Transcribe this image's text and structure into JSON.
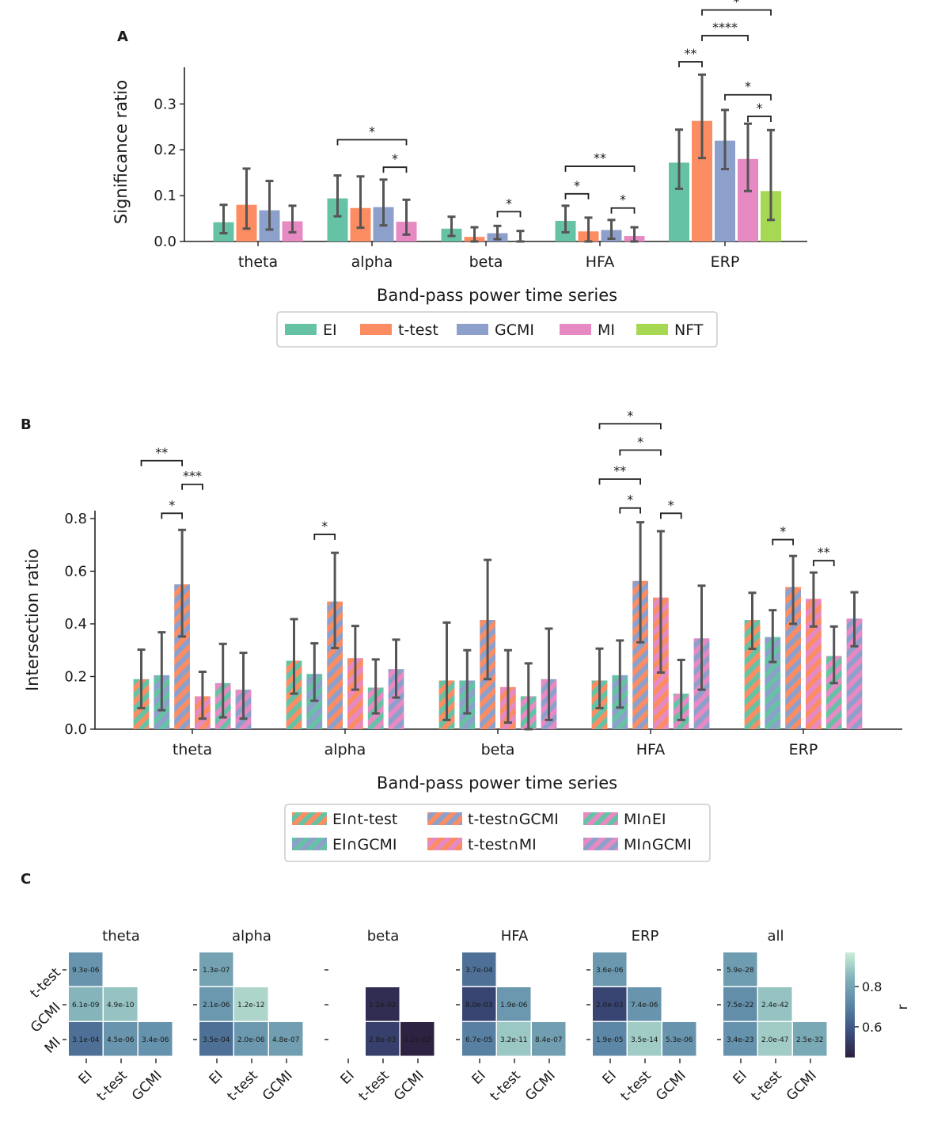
{
  "panel_labels": {
    "A": "A",
    "B": "B",
    "C": "C"
  },
  "colors": {
    "EI": "#66c2a5",
    "t-test": "#fc8d62",
    "GCMI": "#8da0cb",
    "MI": "#e78ac3",
    "NFT": "#a6d854",
    "error": "#555555",
    "cmap": [
      "#2d1e3e",
      "#3b4f80",
      "#5a84a6",
      "#7fb0b8",
      "#c9ecd6"
    ]
  },
  "chart_data": [
    {
      "type": "bar",
      "id": "A",
      "title": "",
      "xlabel": "Band-pass power time series",
      "ylabel": "Significance ratio",
      "ylim": [
        0,
        0.38
      ],
      "yticks": [
        0.0,
        0.1,
        0.2,
        0.3
      ],
      "ytick_labels": [
        "0.0",
        "0.1",
        "0.2",
        "0.3"
      ],
      "categories": [
        "theta",
        "alpha",
        "beta",
        "HFA",
        "ERP"
      ],
      "series": [
        {
          "name": "EI",
          "values": [
            0.042,
            0.094,
            0.028,
            0.045,
            0.172
          ],
          "err_low": [
            0.018,
            0.055,
            0.012,
            0.02,
            0.115
          ],
          "err_high": [
            0.08,
            0.144,
            0.054,
            0.078,
            0.244
          ]
        },
        {
          "name": "t-test",
          "values": [
            0.08,
            0.073,
            0.01,
            0.022,
            0.263
          ],
          "err_low": [
            0.028,
            0.03,
            0.0,
            0.0,
            0.182
          ],
          "err_high": [
            0.159,
            0.142,
            0.031,
            0.052,
            0.364
          ]
        },
        {
          "name": "GCMI",
          "values": [
            0.068,
            0.075,
            0.018,
            0.025,
            0.22
          ],
          "err_low": [
            0.026,
            0.035,
            0.005,
            0.006,
            0.158
          ],
          "err_high": [
            0.132,
            0.135,
            0.034,
            0.047,
            0.287
          ]
        },
        {
          "name": "MI",
          "values": [
            0.044,
            0.043,
            0.0,
            0.012,
            0.18
          ],
          "err_low": [
            0.02,
            0.015,
            0.0,
            0.0,
            0.11
          ],
          "err_high": [
            0.078,
            0.091,
            0.023,
            0.031,
            0.257
          ]
        },
        {
          "name": "NFT",
          "values": [
            null,
            null,
            null,
            null,
            0.11
          ],
          "err_low": [
            null,
            null,
            null,
            null,
            0.047
          ],
          "err_high": [
            null,
            null,
            null,
            null,
            0.243
          ]
        }
      ],
      "significance": [
        {
          "group": 1,
          "from": 0,
          "to": 3,
          "y": 0.222,
          "label": "*"
        },
        {
          "group": 1,
          "from": 2,
          "to": 3,
          "y": 0.162,
          "label": "*"
        },
        {
          "group": 2,
          "from": 2,
          "to": 3,
          "y": 0.065,
          "label": "*"
        },
        {
          "group": 3,
          "from": 0,
          "to": 3,
          "y": 0.164,
          "label": "**"
        },
        {
          "group": 3,
          "from": 0,
          "to": 1,
          "y": 0.104,
          "label": "*"
        },
        {
          "group": 3,
          "from": 2,
          "to": 3,
          "y": 0.073,
          "label": "*"
        },
        {
          "group": 4,
          "from": 0,
          "to": 1,
          "y": 0.392,
          "label": "**"
        },
        {
          "group": 4,
          "from": 1,
          "to": 3,
          "y": 0.449,
          "label": "****"
        },
        {
          "group": 4,
          "from": 1,
          "to": 4,
          "y": 0.505,
          "label": "*"
        },
        {
          "group": 4,
          "from": 2,
          "to": 4,
          "y": 0.32,
          "label": "*"
        },
        {
          "group": 4,
          "from": 3,
          "to": 4,
          "y": 0.273,
          "label": "*"
        }
      ],
      "legend": {
        "position": "bottom",
        "entries": [
          "EI",
          "t-test",
          "GCMI",
          "MI",
          "NFT"
        ]
      }
    },
    {
      "type": "bar",
      "id": "B",
      "title": "",
      "xlabel": "Band-pass power time series",
      "ylabel": "Intersection ratio",
      "ylim": [
        0,
        0.83
      ],
      "yticks": [
        0.0,
        0.2,
        0.4,
        0.6,
        0.8
      ],
      "ytick_labels": [
        "0.0",
        "0.2",
        "0.4",
        "0.6",
        "0.8"
      ],
      "categories": [
        "theta",
        "alpha",
        "beta",
        "HFA",
        "ERP"
      ],
      "series": [
        {
          "name": "EI∩t-test",
          "stripes": [
            "t-test",
            "EI"
          ],
          "values": [
            0.19,
            0.26,
            0.185,
            0.185,
            0.415
          ],
          "err_low": [
            0.08,
            0.135,
            0.035,
            0.08,
            0.305
          ],
          "err_high": [
            0.302,
            0.418,
            0.405,
            0.306,
            0.518
          ]
        },
        {
          "name": "EI∩GCMI",
          "stripes": [
            "EI",
            "GCMI"
          ],
          "values": [
            0.205,
            0.21,
            0.185,
            0.205,
            0.35
          ],
          "err_low": [
            0.072,
            0.108,
            0.06,
            0.082,
            0.255
          ],
          "err_high": [
            0.368,
            0.326,
            0.3,
            0.337,
            0.452
          ]
        },
        {
          "name": "t-test∩GCMI",
          "stripes": [
            "t-test",
            "GCMI"
          ],
          "values": [
            0.55,
            0.485,
            0.415,
            0.563,
            0.54
          ],
          "err_low": [
            0.352,
            0.308,
            0.19,
            0.33,
            0.4
          ],
          "err_high": [
            0.757,
            0.67,
            0.643,
            0.786,
            0.658
          ]
        },
        {
          "name": "t-test∩MI",
          "stripes": [
            "t-test",
            "MI"
          ],
          "values": [
            0.125,
            0.27,
            0.16,
            0.5,
            0.495
          ],
          "err_low": [
            0.04,
            0.15,
            0.025,
            0.215,
            0.39
          ],
          "err_high": [
            0.218,
            0.392,
            0.3,
            0.752,
            0.595
          ]
        },
        {
          "name": "MI∩EI",
          "stripes": [
            "MI",
            "EI"
          ],
          "values": [
            0.175,
            0.158,
            0.125,
            0.135,
            0.278
          ],
          "err_low": [
            0.045,
            0.06,
            0.0,
            0.035,
            0.175
          ],
          "err_high": [
            0.324,
            0.265,
            0.25,
            0.263,
            0.39
          ]
        },
        {
          "name": "MI∩GCMI",
          "stripes": [
            "MI",
            "GCMI"
          ],
          "values": [
            0.15,
            0.228,
            0.19,
            0.345,
            0.42
          ],
          "err_low": [
            0.04,
            0.12,
            0.035,
            0.15,
            0.315
          ],
          "err_high": [
            0.29,
            0.34,
            0.382,
            0.545,
            0.52
          ]
        }
      ],
      "significance": [
        {
          "group": 0,
          "from": 0,
          "to": 2,
          "y": 1.02,
          "label": "**"
        },
        {
          "group": 0,
          "from": 2,
          "to": 3,
          "y": 0.93,
          "label": "***"
        },
        {
          "group": 0,
          "from": 1,
          "to": 2,
          "y": 0.82,
          "label": "*"
        },
        {
          "group": 1,
          "from": 1,
          "to": 2,
          "y": 0.74,
          "label": "*"
        },
        {
          "group": 3,
          "from": 0,
          "to": 3,
          "y": 1.16,
          "label": "*"
        },
        {
          "group": 3,
          "from": 1,
          "to": 3,
          "y": 1.06,
          "label": "*"
        },
        {
          "group": 3,
          "from": 0,
          "to": 2,
          "y": 0.95,
          "label": "**"
        },
        {
          "group": 3,
          "from": 1,
          "to": 2,
          "y": 0.84,
          "label": "*"
        },
        {
          "group": 3,
          "from": 3,
          "to": 4,
          "y": 0.82,
          "label": "*"
        },
        {
          "group": 4,
          "from": 1,
          "to": 2,
          "y": 0.72,
          "label": "*"
        },
        {
          "group": 4,
          "from": 3,
          "to": 4,
          "y": 0.64,
          "label": "**"
        }
      ],
      "legend": {
        "position": "bottom",
        "columns": 3,
        "entries": [
          "EI∩t-test",
          "EI∩GCMI",
          "t-test∩GCMI",
          "t-test∩MI",
          "MI∩EI",
          "MI∩GCMI"
        ]
      }
    },
    {
      "type": "heatmap",
      "id": "C",
      "title": "",
      "row_labels": [
        "t-test",
        "GCMI",
        "MI"
      ],
      "col_labels": [
        "EI",
        "t-test",
        "GCMI"
      ],
      "colorbar": {
        "label": "r",
        "min": 0.45,
        "max": 0.97,
        "ticks": [
          0.6,
          0.8
        ],
        "tick_labels": [
          "0.6",
          "0.8"
        ]
      },
      "panels": [
        {
          "title": "theta",
          "cells": [
            {
              "row": 0,
              "col": 0,
              "r": 0.76,
              "p": "9.3e-06"
            },
            {
              "row": 1,
              "col": 0,
              "r": 0.85,
              "p": "6.1e-09"
            },
            {
              "row": 1,
              "col": 1,
              "r": 0.88,
              "p": "4.9e-10"
            },
            {
              "row": 2,
              "col": 0,
              "r": 0.66,
              "p": "3.1e-04"
            },
            {
              "row": 2,
              "col": 1,
              "r": 0.76,
              "p": "4.5e-06"
            },
            {
              "row": 2,
              "col": 2,
              "r": 0.75,
              "p": "3.4e-06"
            }
          ]
        },
        {
          "title": "alpha",
          "cells": [
            {
              "row": 0,
              "col": 0,
              "r": 0.8,
              "p": "1.3e-07"
            },
            {
              "row": 1,
              "col": 0,
              "r": 0.77,
              "p": "2.1e-06"
            },
            {
              "row": 1,
              "col": 1,
              "r": 0.92,
              "p": "1.2e-12"
            },
            {
              "row": 2,
              "col": 0,
              "r": 0.66,
              "p": "3.5e-04"
            },
            {
              "row": 2,
              "col": 1,
              "r": 0.77,
              "p": "2.0e-06"
            },
            {
              "row": 2,
              "col": 2,
              "r": 0.79,
              "p": "4.8e-07"
            }
          ]
        },
        {
          "title": "beta",
          "cells": [
            {
              "row": 1,
              "col": 1,
              "r": 0.49,
              "p": "1.2e-02"
            },
            {
              "row": 2,
              "col": 1,
              "r": 0.54,
              "p": "2.8e-03"
            },
            {
              "row": 2,
              "col": 2,
              "r": 0.46,
              "p": "3.2e-02"
            }
          ]
        },
        {
          "title": "HFA",
          "cells": [
            {
              "row": 0,
              "col": 0,
              "r": 0.66,
              "p": "3.7e-04"
            },
            {
              "row": 1,
              "col": 0,
              "r": 0.55,
              "p": "8.0e-03"
            },
            {
              "row": 1,
              "col": 1,
              "r": 0.77,
              "p": "1.9e-06"
            },
            {
              "row": 2,
              "col": 0,
              "r": 0.7,
              "p": "6.7e-05"
            },
            {
              "row": 2,
              "col": 1,
              "r": 0.89,
              "p": "3.2e-11"
            },
            {
              "row": 2,
              "col": 2,
              "r": 0.79,
              "p": "8.4e-07"
            }
          ]
        },
        {
          "title": "ERP",
          "cells": [
            {
              "row": 0,
              "col": 0,
              "r": 0.77,
              "p": "3.6e-06"
            },
            {
              "row": 1,
              "col": 0,
              "r": 0.55,
              "p": "2.0e-03"
            },
            {
              "row": 1,
              "col": 1,
              "r": 0.76,
              "p": "7.4e-06"
            },
            {
              "row": 2,
              "col": 0,
              "r": 0.72,
              "p": "1.9e-05"
            },
            {
              "row": 2,
              "col": 1,
              "r": 0.9,
              "p": "3.5e-14"
            },
            {
              "row": 2,
              "col": 2,
              "r": 0.76,
              "p": "5.3e-06"
            }
          ]
        },
        {
          "title": "all",
          "cells": [
            {
              "row": 0,
              "col": 0,
              "r": 0.78,
              "p": "5.9e-28"
            },
            {
              "row": 1,
              "col": 0,
              "r": 0.74,
              "p": "7.5e-22"
            },
            {
              "row": 1,
              "col": 1,
              "r": 0.88,
              "p": "2.4e-42"
            },
            {
              "row": 2,
              "col": 0,
              "r": 0.75,
              "p": "3.4e-23"
            },
            {
              "row": 2,
              "col": 1,
              "r": 0.9,
              "p": "2.0e-47"
            },
            {
              "row": 2,
              "col": 2,
              "r": 0.82,
              "p": "2.5e-32"
            }
          ]
        }
      ]
    }
  ]
}
